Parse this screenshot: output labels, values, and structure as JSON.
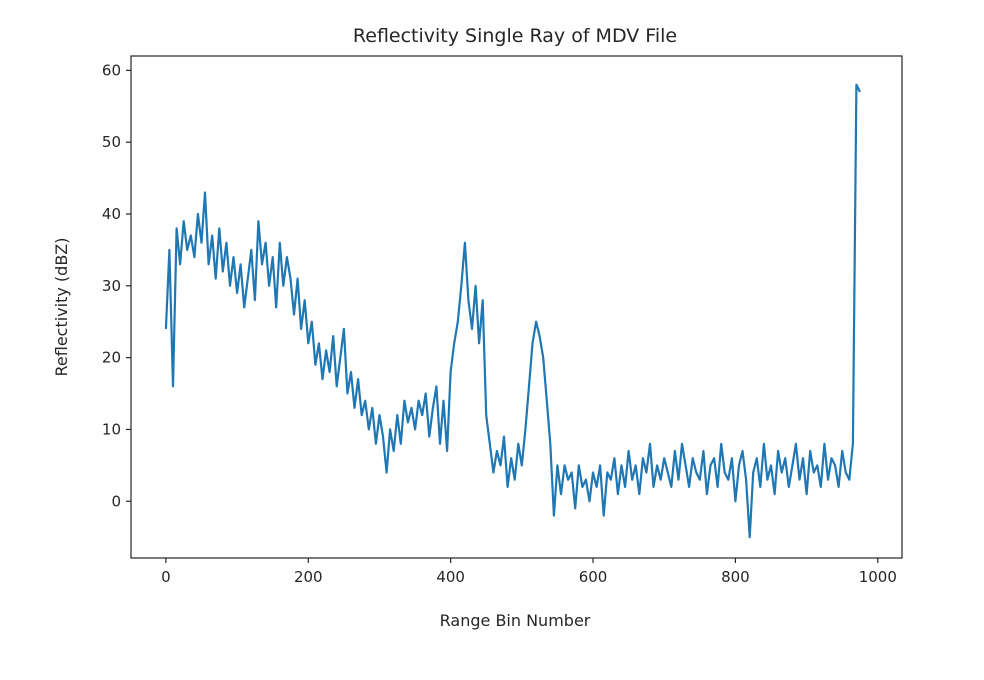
{
  "chart_data": {
    "type": "line",
    "title": "Reflectivity Single Ray of MDV File",
    "xlabel": "Range Bin Number",
    "ylabel": "Reflectivity (dBZ)",
    "xlim": [
      -49,
      1034
    ],
    "ylim": [
      -7.9,
      62
    ],
    "xticks": [
      0,
      200,
      400,
      600,
      800,
      1000
    ],
    "yticks": [
      0,
      10,
      20,
      30,
      40,
      50,
      60
    ],
    "x_start": 0,
    "x_step": 5,
    "series": [
      {
        "name": "Reflectivity",
        "color": "#1f77b4",
        "values": [
          24,
          35,
          16,
          38,
          33,
          39,
          35,
          37,
          34,
          40,
          36,
          43,
          33,
          37,
          31,
          38,
          32,
          36,
          30,
          34,
          29,
          33,
          27,
          31,
          35,
          28,
          39,
          33,
          36,
          30,
          34,
          27,
          36,
          30,
          34,
          31,
          26,
          31,
          24,
          28,
          22,
          25,
          19,
          22,
          17,
          21,
          18,
          23,
          16,
          20,
          24,
          15,
          18,
          13,
          17,
          12,
          14,
          10,
          13,
          8,
          12,
          9,
          4,
          10,
          7,
          12,
          8,
          14,
          11,
          13,
          10,
          14,
          12,
          15,
          9,
          13,
          16,
          8,
          14,
          7,
          18,
          22,
          25,
          30,
          36,
          28,
          24,
          30,
          22,
          28,
          12,
          8,
          4,
          7,
          5,
          9,
          2,
          6,
          3,
          8,
          5,
          10,
          16,
          22,
          25,
          23,
          20,
          14,
          8,
          -2,
          5,
          1,
          5,
          3,
          4,
          -1,
          5,
          2,
          3,
          0,
          4,
          2,
          5,
          -2,
          4,
          3,
          6,
          1,
          5,
          2,
          7,
          3,
          5,
          1,
          6,
          4,
          8,
          2,
          5,
          3,
          6,
          4,
          2,
          7,
          3,
          8,
          5,
          2,
          6,
          4,
          3,
          7,
          1,
          5,
          6,
          2,
          8,
          4,
          3,
          6,
          0,
          5,
          7,
          3,
          -5,
          4,
          6,
          2,
          8,
          3,
          5,
          1,
          7,
          4,
          6,
          2,
          5,
          8,
          3,
          6,
          1,
          7,
          4,
          5,
          2,
          8,
          3,
          6,
          5,
          2,
          7,
          4,
          3,
          8,
          58,
          57
        ]
      }
    ]
  }
}
